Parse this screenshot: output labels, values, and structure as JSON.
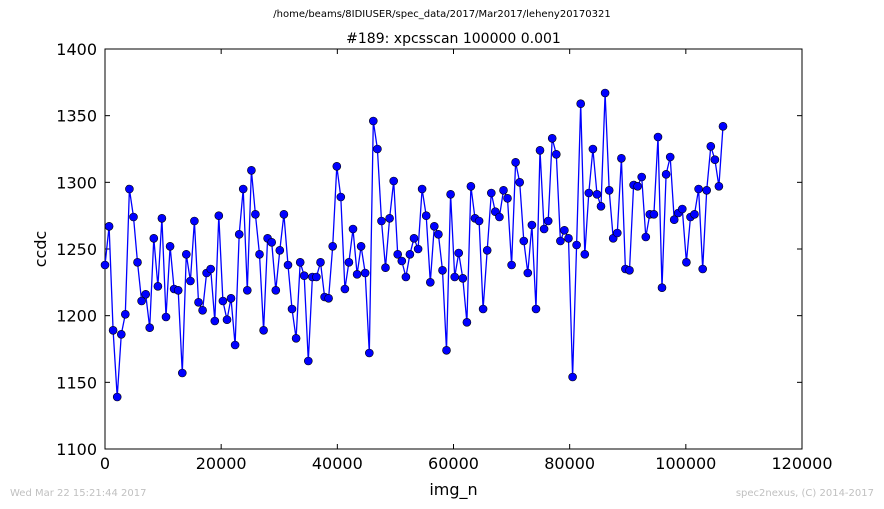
{
  "header": {
    "path": "/home/beams/8IDIUSER/spec_data/2017/Mar2017/leheny20170321"
  },
  "footer": {
    "timestamp": "Wed Mar 22 15:21:44 2017",
    "credit": "spec2nexus, (C) 2014-2017"
  },
  "colors": {
    "series": "#0000ff",
    "axes": "#000000",
    "footer": "#c0c0c0"
  },
  "chart_data": {
    "type": "line",
    "title": "#189: xpcsscan 100000 0.001",
    "xlabel": "img_n",
    "ylabel": "ccdc",
    "xlim": [
      0,
      120000
    ],
    "ylim": [
      1100,
      1400
    ],
    "xticks": [
      "0",
      "20000",
      "40000",
      "60000",
      "80000",
      "100000",
      "120000"
    ],
    "yticks": [
      "1100",
      "1150",
      "1200",
      "1250",
      "1300",
      "1350",
      "1400"
    ],
    "grid": false,
    "legend": "none",
    "markers": "filled circles",
    "x_start": 0,
    "x_step": 700,
    "series": [
      {
        "values": [
          1238,
          1267,
          1189,
          1139,
          1186,
          1201,
          1295,
          1274,
          1240,
          1211,
          1216,
          1191,
          1258,
          1222,
          1273,
          1199,
          1252,
          1220,
          1219,
          1157,
          1246,
          1226,
          1271,
          1210,
          1204,
          1232,
          1235,
          1196,
          1275,
          1211,
          1197,
          1213,
          1178,
          1261,
          1295,
          1219,
          1309,
          1276,
          1246,
          1189,
          1258,
          1255,
          1219,
          1249,
          1276,
          1238,
          1205,
          1183,
          1240,
          1230,
          1166,
          1229,
          1229,
          1240,
          1214,
          1213,
          1252,
          1312,
          1289,
          1220,
          1240,
          1265,
          1231,
          1252,
          1232,
          1172,
          1346,
          1325,
          1271,
          1236,
          1273,
          1301,
          1246,
          1241,
          1229,
          1246,
          1258,
          1250,
          1295,
          1275,
          1225,
          1267,
          1261,
          1234,
          1174,
          1291,
          1229,
          1247,
          1228,
          1195,
          1297,
          1273,
          1271,
          1205,
          1249,
          1292,
          1278,
          1274,
          1294,
          1288,
          1238,
          1315,
          1300,
          1256,
          1232,
          1268,
          1205,
          1324,
          1265,
          1271,
          1333,
          1321,
          1256,
          1264,
          1258,
          1154,
          1253,
          1359,
          1246,
          1292,
          1325,
          1291,
          1282,
          1367,
          1294,
          1258,
          1262,
          1318,
          1235,
          1234,
          1298,
          1297,
          1304,
          1259,
          1276,
          1276,
          1334,
          1221,
          1306,
          1319,
          1272,
          1277,
          1280,
          1240,
          1274,
          1276,
          1295,
          1235,
          1294,
          1327,
          1317,
          1297,
          1342
        ]
      }
    ]
  }
}
